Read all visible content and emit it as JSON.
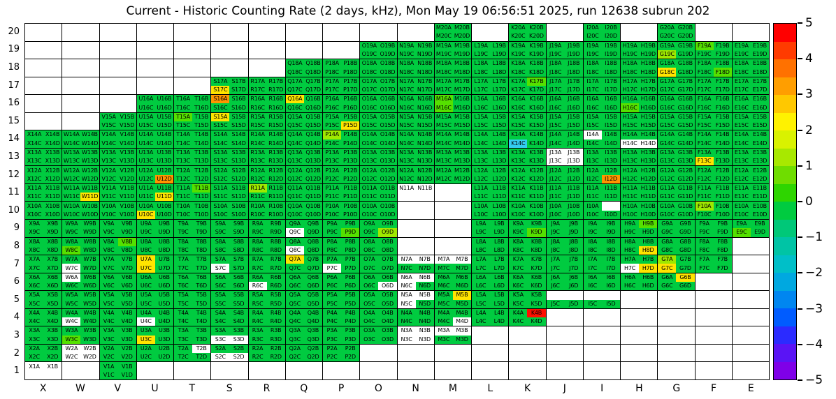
{
  "title": "Current - Historic Counting Rate (2 days, kHz), Mon May 19 06:56:51 2025, run 12638 subrun 202",
  "chart_data": {
    "type": "heatmap",
    "title": "Current - Historic Counting Rate (2 days, kHz), Mon May 19 06:56:51 2025, run 12638 subrun 202",
    "x_categories": [
      "X",
      "W",
      "V",
      "U",
      "T",
      "S",
      "R",
      "Q",
      "P",
      "O",
      "N",
      "M",
      "L",
      "K",
      "J",
      "I",
      "H",
      "G",
      "F",
      "E"
    ],
    "y_categories": [
      20,
      19,
      18,
      17,
      16,
      15,
      14,
      13,
      12,
      11,
      10,
      9,
      8,
      7,
      6,
      5,
      4,
      3,
      2,
      1
    ],
    "channel_suffixes": [
      "A",
      "B",
      "C",
      "D"
    ],
    "palette": {
      "g": "#00CB40",
      "G": "#55E000",
      "Y": "#9FE800",
      "y": "#FFE400",
      "o": "#FF9500",
      "r": "#FF0E00",
      "c": "#33CCEE",
      "w": "#FFFFFF"
    },
    "code_values": {
      "g": 0,
      "G": 0.5,
      "Y": 1,
      "y": 1.5,
      "o": 3,
      "r": 5,
      "c": -1.5,
      "w": null,
      "x": null
    },
    "rows": [
      {
        "row": 20,
        "cells": {
          "M": "gggg",
          "K": "gggg",
          "I": "gggg",
          "G": "gggg"
        }
      },
      {
        "row": 19,
        "cells": {
          "O": "gggg",
          "N": "gggg",
          "M": "gggg",
          "L": "gggg",
          "K": "gggg",
          "J": "gggg",
          "I": "gggg",
          "H": "gggg",
          "G": "ggYg",
          "F": "Gggg",
          "E": "gggg"
        }
      },
      {
        "row": 18,
        "cells": {
          "Q": "gggg",
          "P": "gggg",
          "O": "gggg",
          "N": "gggg",
          "M": "gggg",
          "L": "gggg",
          "K": "gggg",
          "J": "gggg",
          "I": "gggg",
          "H": "gggg",
          "G": "ggyg",
          "F": "gggG",
          "E": "gggg"
        }
      },
      {
        "row": 17,
        "cells": {
          "S": "ggyg",
          "R": "gggg",
          "Q": "gggg",
          "P": "gggg",
          "O": "gggg",
          "N": "gggg",
          "M": "gggg",
          "L": "gggg",
          "K": "gGgg",
          "J": "gggg",
          "I": "gggg",
          "H": "gggg",
          "G": "gggg",
          "F": "gggg",
          "E": "gggg"
        }
      },
      {
        "row": 16,
        "cells": {
          "U": "gggg",
          "T": "gggg",
          "S": "oggg",
          "R": "gggg",
          "Q": "yggg",
          "P": "gggg",
          "O": "gggg",
          "N": "gggg",
          "M": "GgGg",
          "L": "gggg",
          "K": "gggg",
          "J": "gggg",
          "I": "gggg",
          "H": "ggGg",
          "G": "gggg",
          "F": "gggg",
          "E": "gggg"
        }
      },
      {
        "row": 15,
        "cells": {
          "V": "gggg",
          "U": "gggg",
          "T": "Gggg",
          "S": "yggg",
          "R": "gggg",
          "Q": "gggg",
          "P": "gggy",
          "O": "gggg",
          "N": "gggg",
          "M": "gggg",
          "L": "gggg",
          "K": "gggg",
          "J": "gggg",
          "I": "gggg",
          "H": "gggg",
          "G": "gggg",
          "F": "gggg",
          "E": "gggg"
        }
      },
      {
        "row": 14,
        "cells": {
          "X": "gggg",
          "W": "gggg",
          "V": "gggg",
          "U": "gggg",
          "T": "gggg",
          "S": "gggg",
          "R": "gggg",
          "Q": "gggg",
          "P": "Yggg",
          "O": "gggg",
          "N": "gggg",
          "M": "gggg",
          "L": "gggg",
          "K": "ggcg",
          "J": "gggg",
          "I": "wggg",
          "H": "ggww",
          "G": "gggg",
          "F": "gggg",
          "E": "gggg"
        }
      },
      {
        "row": 13,
        "cells": {
          "X": "gggg",
          "W": "gggg",
          "V": "gggg",
          "U": "gggg",
          "T": "gggg",
          "S": "gggg",
          "R": "gggg",
          "Q": "gggg",
          "P": "gggg",
          "O": "gggg",
          "N": "gggg",
          "M": "gggg",
          "L": "gggg",
          "K": "gggg",
          "J": "wwww",
          "I": "gggg",
          "H": "gggg",
          "G": "gggg",
          "F": "ggyg",
          "E": "gggg"
        }
      },
      {
        "row": 12,
        "cells": {
          "X": "gggg",
          "W": "gggg",
          "V": "gggg",
          "U": "gggo",
          "T": "gggg",
          "S": "gggg",
          "R": "gggg",
          "Q": "gggg",
          "P": "gggg",
          "O": "gggg",
          "N": "gggg",
          "M": "gggg",
          "L": "gggg",
          "K": "gggg",
          "J": "gggg",
          "I": "gggo",
          "H": "gggg",
          "G": "gggg",
          "F": "gggg",
          "E": "gggg"
        }
      },
      {
        "row": 11,
        "cells": {
          "X": "gggg",
          "W": "gggy",
          "V": "gggg",
          "U": "gggy",
          "T": "gGgg",
          "S": "gggg",
          "R": "Yggg",
          "Q": "gggg",
          "P": "gggg",
          "O": "gggg",
          "N": "wwxx",
          "L": "gggg",
          "K": "gggg",
          "J": "gggg",
          "I": "gggg",
          "H": "gggg",
          "G": "gggg",
          "F": "gggg",
          "E": "gggg"
        }
      },
      {
        "row": 10,
        "cells": {
          "X": "gggg",
          "W": "gggg",
          "V": "gggg",
          "U": "ggyg",
          "T": "gggg",
          "S": "gggg",
          "R": "gggg",
          "Q": "gggg",
          "P": "gggg",
          "O": "gggg",
          "L": "gggg",
          "K": "gggg",
          "J": "gggg",
          "I": "gxgg",
          "H": "gggg",
          "G": "gggg",
          "F": "Yggg",
          "E": "gggg"
        }
      },
      {
        "row": 9,
        "cells": {
          "X": "gggg",
          "W": "gggg",
          "V": "gggg",
          "U": "gggg",
          "T": "gggg",
          "S": "gggg",
          "R": "gggg",
          "Q": "ggwg",
          "P": "gggG",
          "O": "gggY",
          "L": "gggg",
          "K": "gggG",
          "J": "gggg",
          "I": "gggg",
          "H": "gGgg",
          "G": "gggg",
          "F": "gggg",
          "E": "ggGg"
        }
      },
      {
        "row": 8,
        "cells": {
          "X": "gggg",
          "W": "ggGg",
          "V": "gGgg",
          "U": "gggg",
          "T": "gggg",
          "S": "gggg",
          "R": "gggg",
          "Q": "ggwg",
          "P": "gggg",
          "O": "gggg",
          "L": "gggg",
          "K": "gggg",
          "J": "gggg",
          "I": "gggg",
          "H": "gggy",
          "G": "gggg",
          "F": "gggg"
        }
      },
      {
        "row": 7,
        "cells": {
          "X": "gggg",
          "W": "ggwg",
          "V": "gggg",
          "U": "ygyg",
          "T": "gggg",
          "S": "ggwg",
          "R": "gggg",
          "Q": "yggg",
          "P": "ggwg",
          "O": "gggg",
          "N": "wwgg",
          "M": "wwgg",
          "L": "gggg",
          "K": "gggg",
          "J": "gggg",
          "I": "gggg",
          "H": "ggwy",
          "G": "Ygyg",
          "F": "gggg"
        }
      },
      {
        "row": 6,
        "cells": {
          "X": "gggg",
          "W": "wggg",
          "V": "gggg",
          "U": "gggg",
          "T": "gggg",
          "S": "gggg",
          "R": "ggwg",
          "Q": "gggg",
          "P": "gggg",
          "O": "gggw",
          "N": "wwwg",
          "M": "gggg",
          "L": "gggg",
          "K": "gggg",
          "J": "gggg",
          "I": "gggg",
          "H": "gggg",
          "G": "gygg"
        }
      },
      {
        "row": 5,
        "cells": {
          "X": "gggg",
          "W": "gggg",
          "V": "gggg",
          "U": "gggg",
          "T": "gggg",
          "S": "gggg",
          "R": "gggg",
          "Q": "gggg",
          "P": "gggg",
          "O": "gggg",
          "N": "wwwg",
          "M": "gygg",
          "L": "gggg",
          "K": "gggg",
          "J": "xxgg",
          "I": "xxgg"
        }
      },
      {
        "row": 4,
        "cells": {
          "X": "gggg",
          "W": "ggwg",
          "V": "gggg",
          "U": "ggwg",
          "T": "gggg",
          "S": "gggg",
          "R": "gggg",
          "Q": "gggg",
          "P": "gggg",
          "O": "gggg",
          "N": "gggg",
          "M": "gggw",
          "L": "gggg",
          "K": "grgg"
        }
      },
      {
        "row": 3,
        "cells": {
          "X": "gggg",
          "W": "ggGg",
          "V": "gggg",
          "U": "ggyg",
          "T": "gggg",
          "S": "ggww",
          "R": "gggg",
          "Q": "gggg",
          "P": "gggg",
          "O": "gggg",
          "N": "wwww",
          "M": "wwgg"
        }
      },
      {
        "row": 2,
        "cells": {
          "X": "gggg",
          "W": "wwww",
          "V": "gggg",
          "U": "gggg",
          "T": "gwgg",
          "S": "ggww",
          "R": "gggg",
          "Q": "gggg",
          "P": "gggg"
        }
      },
      {
        "row": 1,
        "cells": {
          "X": "wwxx",
          "V": "gggg"
        }
      }
    ],
    "colorbar": {
      "min": -5,
      "max": 5,
      "ticks": [
        {
          "label": "5",
          "value": 5
        },
        {
          "label": "4",
          "value": 4
        },
        {
          "label": "3",
          "value": 3
        },
        {
          "label": "2",
          "value": 2
        },
        {
          "label": "1",
          "value": 1
        },
        {
          "label": "0",
          "value": 0
        },
        {
          "label": "−1",
          "value": -1
        },
        {
          "label": "−2",
          "value": -2
        },
        {
          "label": "−3",
          "value": -3
        },
        {
          "label": "−4",
          "value": -4
        },
        {
          "label": "−5",
          "value": -5
        }
      ],
      "colors": [
        "#FF0000",
        "#FF3B00",
        "#FF7100",
        "#FF9E00",
        "#FFC800",
        "#FFF200",
        "#D9F200",
        "#A8E800",
        "#6FDD00",
        "#2ED500",
        "#00CB40",
        "#00C878",
        "#00C4A5",
        "#00BFC8",
        "#00A8E0",
        "#0086F0",
        "#005CFF",
        "#2B2BFF",
        "#5A14F5",
        "#7F00E8"
      ]
    }
  }
}
